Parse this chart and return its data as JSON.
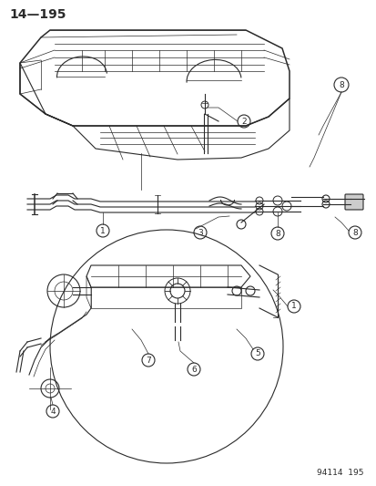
{
  "title_text": "14—195",
  "footer_text": "94114  195",
  "bg_color": "#ffffff",
  "line_color": "#2a2a2a",
  "title_fontsize": 10,
  "footer_fontsize": 6.5,
  "figsize": [
    4.14,
    5.33
  ],
  "dpi": 100
}
